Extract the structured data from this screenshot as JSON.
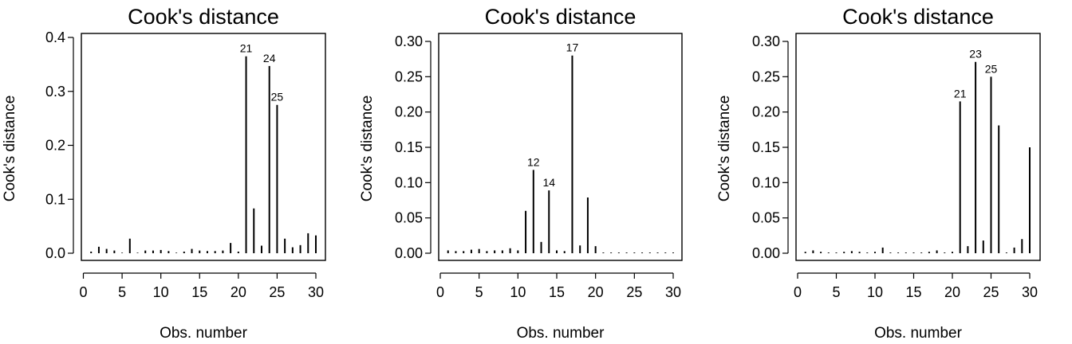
{
  "chart_data": [
    {
      "type": "bar",
      "title": "Cook's distance",
      "xlabel": "Obs. number",
      "ylabel": "Cook's distance",
      "xlim": [
        0,
        30
      ],
      "ylim": [
        0,
        0.4
      ],
      "xticks": [
        "0",
        "5",
        "10",
        "15",
        "20",
        "25",
        "30"
      ],
      "yticks": [
        "0.0",
        "0.1",
        "0.2",
        "0.3",
        "0.4"
      ],
      "x": [
        1,
        2,
        3,
        4,
        5,
        6,
        7,
        8,
        9,
        10,
        11,
        12,
        13,
        14,
        15,
        16,
        17,
        18,
        19,
        20,
        21,
        22,
        23,
        24,
        25,
        26,
        27,
        28,
        29,
        30
      ],
      "values": [
        0.003,
        0.012,
        0.008,
        0.005,
        0.001,
        0.027,
        0.001,
        0.005,
        0.005,
        0.006,
        0.004,
        0.001,
        0.003,
        0.008,
        0.005,
        0.004,
        0.004,
        0.005,
        0.019,
        0.003,
        0.365,
        0.083,
        0.014,
        0.347,
        0.275,
        0.027,
        0.011,
        0.015,
        0.037,
        0.033
      ],
      "labels": [
        {
          "x": 21,
          "text": "21"
        },
        {
          "x": 24,
          "text": "24"
        },
        {
          "x": 25,
          "text": "25"
        }
      ]
    },
    {
      "type": "bar",
      "title": "Cook's distance",
      "xlabel": "Obs. number",
      "ylabel": "Cook's distance",
      "xlim": [
        0,
        30
      ],
      "ylim": [
        0,
        0.3
      ],
      "xticks": [
        "0",
        "5",
        "10",
        "15",
        "20",
        "25",
        "30"
      ],
      "yticks": [
        "0.00",
        "0.05",
        "0.10",
        "0.15",
        "0.20",
        "0.25",
        "0.30"
      ],
      "x": [
        1,
        2,
        3,
        4,
        5,
        6,
        7,
        8,
        9,
        10,
        11,
        12,
        13,
        14,
        15,
        16,
        17,
        18,
        19,
        20,
        21,
        22,
        23,
        24,
        25,
        26,
        27,
        28,
        29,
        30
      ],
      "values": [
        0.004,
        0.003,
        0.003,
        0.005,
        0.006,
        0.003,
        0.004,
        0.004,
        0.007,
        0.004,
        0.06,
        0.118,
        0.016,
        0.089,
        0.004,
        0.003,
        0.28,
        0.011,
        0.079,
        0.01,
        0.001,
        0.001,
        0.001,
        0.001,
        0.001,
        0.001,
        0.001,
        0.001,
        0.001,
        0.001
      ],
      "labels": [
        {
          "x": 12,
          "text": "12"
        },
        {
          "x": 14,
          "text": "14"
        },
        {
          "x": 17,
          "text": "17"
        }
      ]
    },
    {
      "type": "bar",
      "title": "Cook's distance",
      "xlabel": "Obs. number",
      "ylabel": "Cook's distance",
      "xlim": [
        0,
        30
      ],
      "ylim": [
        0,
        0.3
      ],
      "xticks": [
        "0",
        "5",
        "10",
        "15",
        "20",
        "25",
        "30"
      ],
      "yticks": [
        "0.00",
        "0.05",
        "0.10",
        "0.15",
        "0.20",
        "0.25",
        "0.30"
      ],
      "x": [
        1,
        2,
        3,
        4,
        5,
        6,
        7,
        8,
        9,
        10,
        11,
        12,
        13,
        14,
        15,
        16,
        17,
        18,
        19,
        20,
        21,
        22,
        23,
        24,
        25,
        26,
        27,
        28,
        29,
        30
      ],
      "values": [
        0.002,
        0.004,
        0.002,
        0.001,
        0.001,
        0.002,
        0.003,
        0.002,
        0.001,
        0.002,
        0.008,
        0.001,
        0.001,
        0.001,
        0.001,
        0.001,
        0.002,
        0.004,
        0.001,
        0.002,
        0.215,
        0.01,
        0.271,
        0.018,
        0.25,
        0.181,
        0.001,
        0.008,
        0.02,
        0.15
      ],
      "labels": [
        {
          "x": 21,
          "text": "21"
        },
        {
          "x": 23,
          "text": "23"
        },
        {
          "x": 25,
          "text": "25"
        }
      ]
    }
  ]
}
